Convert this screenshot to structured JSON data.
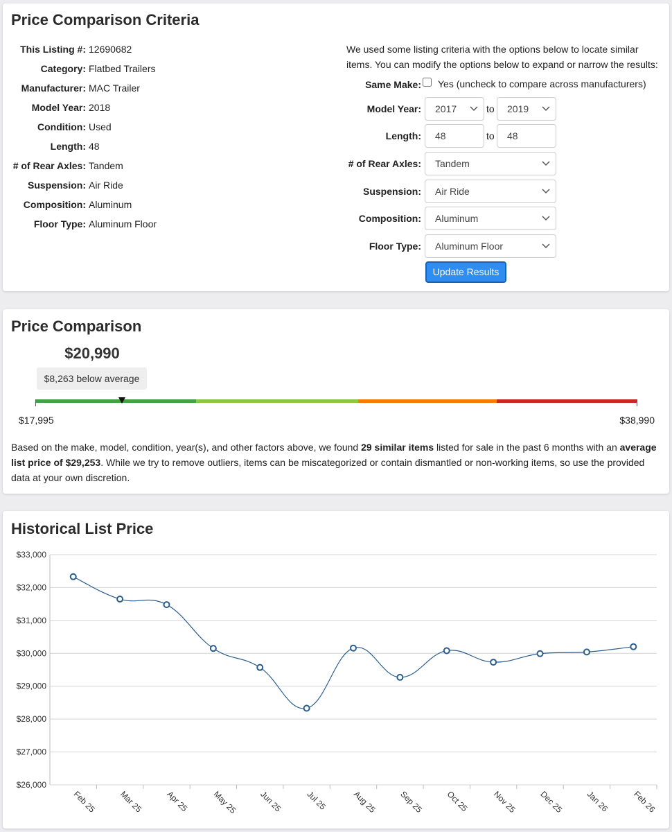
{
  "criteria": {
    "title": "Price Comparison Criteria",
    "listing": [
      {
        "label": "This Listing #:",
        "value": "12690682"
      },
      {
        "label": "Category:",
        "value": "Flatbed Trailers"
      },
      {
        "label": "Manufacturer:",
        "value": "MAC Trailer"
      },
      {
        "label": "Model Year:",
        "value": "2018"
      },
      {
        "label": "Condition:",
        "value": "Used"
      },
      {
        "label": "Length:",
        "value": "48"
      },
      {
        "label": "# of Rear Axles:",
        "value": "Tandem"
      },
      {
        "label": "Suspension:",
        "value": "Air Ride"
      },
      {
        "label": "Composition:",
        "value": "Aluminum"
      },
      {
        "label": "Floor Type:",
        "value": "Aluminum Floor"
      }
    ],
    "intro": [
      "We used some listing criteria with the options below to locate similar",
      "items. You can modify the options below to expand or narrow the results:"
    ],
    "same_make": {
      "label": "Same Make:",
      "text": "Yes (uncheck to compare across manufacturers)"
    },
    "model_year": {
      "label": "Model Year:",
      "from": "2017",
      "to_text": "to",
      "to": "2019"
    },
    "length": {
      "label": "Length:",
      "from": "48",
      "to_text": "to",
      "to": "48"
    },
    "selects": [
      {
        "label": "# of Rear Axles:",
        "value": "Tandem"
      },
      {
        "label": "Suspension:",
        "value": "Air Ride"
      },
      {
        "label": "Composition:",
        "value": "Aluminum"
      },
      {
        "label": "Floor Type:",
        "value": "Aluminum Floor"
      }
    ],
    "button": "Update Results"
  },
  "comparison": {
    "title": "Price Comparison",
    "price": {
      "value": 20990,
      "label": "$20,990"
    },
    "badge": "$8,263 below average",
    "min": {
      "value": 17995,
      "label": "$17,995"
    },
    "max": {
      "value": 38990,
      "label": "$38,990"
    },
    "segments": [
      {
        "color": "#43a047",
        "end": 23600
      },
      {
        "color": "#8dc63f",
        "end": 29250
      },
      {
        "color": "#f57c00",
        "end": 34100
      },
      {
        "color": "#c62828",
        "end": 38990
      }
    ],
    "paragraph": [
      {
        "text": "Based on the make, model, condition, year(s), and other factors above, we found "
      },
      {
        "text": "29 similar items",
        "bold": true
      },
      {
        "text": " listed for sale in the past 6 months with an "
      },
      {
        "text": "average list price of $29,253",
        "bold": true
      },
      {
        "text": ". While we try to remove outliers, items can be miscategorized or contain dismantled or non-working items, so use the provided data at your own discretion."
      }
    ]
  },
  "chart_data": {
    "type": "line",
    "title": "Historical List Price",
    "categories": [
      "Feb 25",
      "Mar 25",
      "Apr 25",
      "May 25",
      "Jun 25",
      "Jul 25",
      "Aug 25",
      "Sep 25",
      "Oct 25",
      "Nov 25",
      "Dec 25",
      "Jan 26",
      "Feb 26"
    ],
    "values": [
      32330,
      31650,
      31480,
      30150,
      29570,
      28330,
      30160,
      29270,
      30080,
      29730,
      29990,
      30040,
      30200
    ],
    "color": "#2a5d8f",
    "ylim": [
      26000,
      33000
    ],
    "yticks": [
      {
        "value": 26000,
        "label": "$26,000"
      },
      {
        "value": 27000,
        "label": "$27,000"
      },
      {
        "value": 28000,
        "label": "$28,000"
      },
      {
        "value": 29000,
        "label": "$29,000"
      },
      {
        "value": 30000,
        "label": "$30,000"
      },
      {
        "value": 31000,
        "label": "$31,000"
      },
      {
        "value": 32000,
        "label": "$32,000"
      },
      {
        "value": 33000,
        "label": "$33,000"
      }
    ],
    "grid": true
  }
}
